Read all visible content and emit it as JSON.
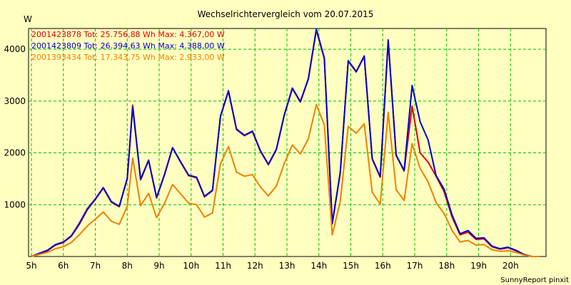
{
  "chart_data": {
    "type": "line",
    "title": "Wechselrichtervergleich vom 20.07.2015",
    "ylabel": "W",
    "xlabel": "",
    "footer": "SunnyReport pinxit",
    "ylim": [
      0,
      4400
    ],
    "xlim": [
      5,
      21
    ],
    "grid": true,
    "legend_position": "top-left",
    "x_ticks": [
      5,
      6,
      7,
      8,
      9,
      10,
      11,
      12,
      13,
      14,
      15,
      16,
      17,
      18,
      19,
      20
    ],
    "x_tick_labels": [
      "5h",
      "6h",
      "7h",
      "8h",
      "9h",
      "10h",
      "11h",
      "12h",
      "13h",
      "14h",
      "15h",
      "16h",
      "17h",
      "18h",
      "19h",
      "20h"
    ],
    "y_ticks": [
      1000,
      2000,
      3000,
      4000
    ],
    "y_tick_labels": [
      "1000",
      "2000",
      "3000",
      "4000"
    ],
    "x": [
      5.0,
      5.25,
      5.5,
      5.75,
      6.0,
      6.25,
      6.5,
      6.75,
      7.0,
      7.25,
      7.5,
      7.75,
      8.0,
      8.17,
      8.42,
      8.67,
      8.92,
      9.17,
      9.42,
      9.67,
      9.92,
      10.17,
      10.42,
      10.67,
      10.92,
      11.17,
      11.42,
      11.67,
      11.92,
      12.17,
      12.42,
      12.67,
      12.92,
      13.17,
      13.42,
      13.67,
      13.92,
      14.17,
      14.42,
      14.67,
      14.92,
      15.17,
      15.42,
      15.67,
      15.92,
      16.17,
      16.42,
      16.67,
      16.92,
      17.17,
      17.42,
      17.67,
      17.92,
      18.17,
      18.42,
      18.67,
      18.92,
      19.17,
      19.42,
      19.67,
      19.92,
      20.17,
      20.42,
      20.67,
      20.92
    ],
    "series": [
      {
        "name": "2001423878",
        "legend_text": "2001423878 Tot: 25.756,88 Wh Max: 4.367,00 W",
        "color": "#e00000",
        "values": [
          0,
          60,
          110,
          220,
          270,
          390,
          620,
          900,
          1100,
          1320,
          1050,
          960,
          1500,
          2920,
          1480,
          1850,
          1130,
          1580,
          2100,
          1820,
          1560,
          1520,
          1150,
          1270,
          2700,
          3190,
          2450,
          2330,
          2410,
          2030,
          1770,
          2060,
          2730,
          3240,
          2980,
          3420,
          4367,
          3820,
          630,
          1610,
          3770,
          3560,
          3860,
          1880,
          1530,
          4160,
          1950,
          1650,
          2900,
          2000,
          1820,
          1550,
          1250,
          760,
          420,
          470,
          330,
          340,
          190,
          140,
          170,
          110,
          40,
          0,
          0
        ]
      },
      {
        "name": "2001423809",
        "legend_text": "2001423809 Tot: 26.394,63 Wh Max: 4.388,00 W",
        "color": "#0000d0",
        "values": [
          0,
          60,
          120,
          230,
          280,
          400,
          640,
          920,
          1110,
          1330,
          1060,
          970,
          1510,
          2880,
          1490,
          1860,
          1140,
          1590,
          2100,
          1830,
          1570,
          1530,
          1160,
          1280,
          2710,
          3200,
          2460,
          2340,
          2420,
          2040,
          1780,
          2070,
          2740,
          3250,
          2990,
          3430,
          4388,
          3830,
          640,
          1620,
          3780,
          3570,
          3870,
          1890,
          1540,
          4180,
          1960,
          1660,
          3300,
          2600,
          2250,
          1560,
          1300,
          800,
          440,
          500,
          350,
          360,
          200,
          150,
          180,
          120,
          40,
          0,
          0
        ]
      },
      {
        "name": "2001393434",
        "legend_text": "2001393434 Tot: 17.343,75 Wh Max: 2.933,00 W",
        "color": "#f08000",
        "values": [
          0,
          40,
          80,
          150,
          190,
          270,
          420,
          590,
          720,
          860,
          680,
          620,
          970,
          1900,
          980,
          1220,
          750,
          1030,
          1390,
          1210,
          1030,
          1000,
          760,
          840,
          1790,
          2120,
          1630,
          1550,
          1580,
          1340,
          1170,
          1360,
          1800,
          2150,
          1980,
          2270,
          2933,
          2540,
          420,
          1060,
          2510,
          2380,
          2560,
          1240,
          1010,
          2780,
          1290,
          1080,
          2180,
          1700,
          1440,
          1040,
          830,
          500,
          280,
          310,
          220,
          230,
          130,
          100,
          110,
          80,
          30,
          0,
          0
        ]
      }
    ]
  }
}
